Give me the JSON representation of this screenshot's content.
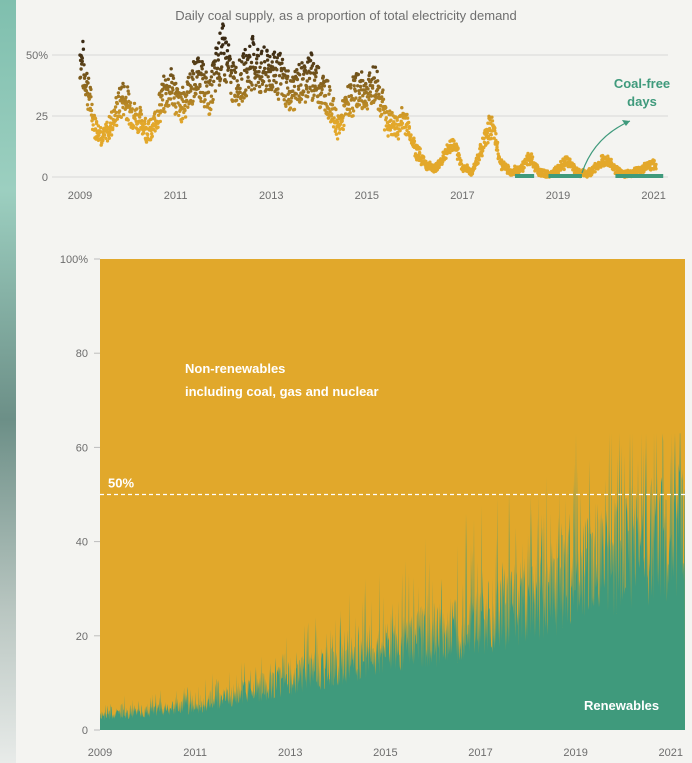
{
  "chart_data": [
    {
      "type": "scatter",
      "title": "Daily coal supply, as a proportion of total electricity demand",
      "y_ticks": [
        "50%",
        "25",
        "0"
      ],
      "x_ticks": [
        "2009",
        "2011",
        "2013",
        "2015",
        "2017",
        "2019",
        "2021"
      ],
      "ylim": [
        0,
        55
      ],
      "xlim": [
        2009,
        2021.3
      ],
      "colors": {
        "low": "#e3a82b",
        "high": "#3a2a14",
        "coal_free": "#3f9a7c"
      },
      "annotation": {
        "lines": [
          "Coal-free",
          "days"
        ],
        "year": 2019.5
      },
      "series": [
        {
          "x": [
            2009.0,
            2009.1,
            2009.3,
            2009.5,
            2009.7,
            2009.9,
            2010.1,
            2010.3,
            2010.5,
            2010.7,
            2010.9,
            2011.1,
            2011.3,
            2011.5,
            2011.7,
            2011.9,
            2012.0,
            2012.2,
            2012.4,
            2012.6,
            2012.8,
            2013.0,
            2013.2,
            2013.4,
            2013.6,
            2013.8,
            2014.0,
            2014.2,
            2014.4,
            2014.6,
            2014.8,
            2015.0,
            2015.2,
            2015.4,
            2015.6,
            2015.8,
            2016.0,
            2016.2,
            2016.4,
            2016.6,
            2016.8,
            2017.0,
            2017.2,
            2017.4,
            2017.6,
            2017.8,
            2018.0,
            2018.2,
            2018.4,
            2018.6,
            2018.8,
            2019.0,
            2019.2,
            2019.4,
            2019.6,
            2019.8,
            2020.0,
            2020.2,
            2020.4,
            2020.6,
            2020.8,
            2021.0
          ],
          "y": [
            50,
            42,
            22,
            16,
            24,
            33,
            26,
            22,
            18,
            31,
            38,
            28,
            36,
            42,
            32,
            48,
            52,
            38,
            40,
            48,
            42,
            44,
            41,
            34,
            38,
            42,
            38,
            32,
            20,
            30,
            36,
            34,
            38,
            24,
            20,
            24,
            12,
            6,
            3,
            8,
            14,
            4,
            2,
            12,
            22,
            6,
            2,
            3,
            8,
            2,
            1,
            3,
            7,
            2,
            1,
            4,
            8,
            3,
            1,
            2,
            4,
            5
          ]
        }
      ]
    },
    {
      "type": "area",
      "y_ticks": [
        "100%",
        "80",
        "60",
        "40",
        "20",
        "0"
      ],
      "x_ticks": [
        "2009",
        "2011",
        "2013",
        "2015",
        "2017",
        "2019",
        "2021"
      ],
      "ylim": [
        0,
        100
      ],
      "xlim": [
        2009,
        2021.3
      ],
      "reference_line": {
        "value": 50,
        "label": "50%"
      },
      "colors": {
        "nonrenewable": "#e1a82b",
        "renewable": "#3f9a7c"
      },
      "series": [
        {
          "name": "Renewables",
          "x": [
            2009,
            2010,
            2011,
            2012,
            2013,
            2014,
            2015,
            2016,
            2017,
            2018,
            2019,
            2020,
            2021
          ],
          "y": [
            3,
            4,
            5,
            8,
            11,
            14,
            17,
            20,
            23,
            28,
            32,
            38,
            42
          ]
        },
        {
          "name": "Non-renewables including coal, gas and nuclear",
          "x": [
            2009,
            2021
          ],
          "y": [
            100,
            100
          ]
        }
      ],
      "labels": {
        "nonrenewable_line1": "Non-renewables",
        "nonrenewable_line2": "including coal, gas and nuclear",
        "renewable": "Renewables"
      }
    }
  ]
}
